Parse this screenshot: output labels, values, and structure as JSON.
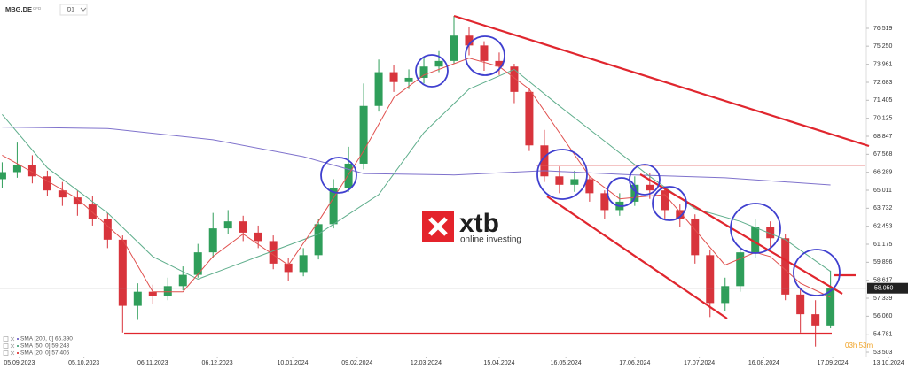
{
  "header": {
    "symbol": "MBG.DE",
    "instrument": "CFD",
    "timeframe": "D1"
  },
  "logo": {
    "brand": "xtb",
    "tagline": "online investing"
  },
  "chart_data": {
    "type": "candlestick",
    "x": [
      "2023-08-28",
      "2023-09-04",
      "2023-09-11",
      "2023-09-18",
      "2023-09-25",
      "2023-10-02",
      "2023-10-09",
      "2023-10-16",
      "2023-10-23",
      "2023-10-30",
      "2023-11-06",
      "2023-11-13",
      "2023-11-20",
      "2023-11-27",
      "2023-12-04",
      "2023-12-11",
      "2023-12-18",
      "2023-12-25",
      "2024-01-01",
      "2024-01-08",
      "2024-01-15",
      "2024-01-22",
      "2024-01-29",
      "2024-02-05",
      "2024-02-12",
      "2024-02-19",
      "2024-02-26",
      "2024-03-04",
      "2024-03-11",
      "2024-03-18",
      "2024-03-25",
      "2024-04-01",
      "2024-04-08",
      "2024-04-15",
      "2024-04-22",
      "2024-04-29",
      "2024-05-06",
      "2024-05-13",
      "2024-05-20",
      "2024-05-27",
      "2024-06-03",
      "2024-06-10",
      "2024-06-17",
      "2024-06-24",
      "2024-07-01",
      "2024-07-08",
      "2024-07-15",
      "2024-07-22",
      "2024-07-29",
      "2024-08-05",
      "2024-08-12",
      "2024-08-19",
      "2024-08-26",
      "2024-09-02",
      "2024-09-09",
      "2024-09-16"
    ],
    "open": [
      65.8,
      66.3,
      66.8,
      66.0,
      65.0,
      64.5,
      64.0,
      63.0,
      61.5,
      56.8,
      57.8,
      57.5,
      58.2,
      59.0,
      60.6,
      62.3,
      62.8,
      62.0,
      61.4,
      59.8,
      59.2,
      60.4,
      62.6,
      65.2,
      66.9,
      71.0,
      73.4,
      72.7,
      73.0,
      73.8,
      74.2,
      76.0,
      75.3,
      74.2,
      73.8,
      72.0,
      68.2,
      66.0,
      65.4,
      65.8,
      64.8,
      63.6,
      64.2,
      65.4,
      65.0,
      63.6,
      63.0,
      60.4,
      57.0,
      58.2,
      60.6,
      62.4,
      61.6,
      57.6,
      56.2,
      55.4
    ],
    "high": [
      67.0,
      68.4,
      67.5,
      66.4,
      65.6,
      65.0,
      64.6,
      63.4,
      61.8,
      58.4,
      58.3,
      58.8,
      59.6,
      61.2,
      63.4,
      63.6,
      63.2,
      62.5,
      61.8,
      60.2,
      60.9,
      63.0,
      65.8,
      68.1,
      72.6,
      74.3,
      73.9,
      73.6,
      74.4,
      74.9,
      77.4,
      76.6,
      75.6,
      74.8,
      74.0,
      72.3,
      69.3,
      66.7,
      66.4,
      66.0,
      65.0,
      64.8,
      66.0,
      66.2,
      65.3,
      64.0,
      63.3,
      60.8,
      58.8,
      61.0,
      63.0,
      62.8,
      61.9,
      58.0,
      57.2,
      59.3
    ],
    "low": [
      65.2,
      65.9,
      65.5,
      64.6,
      63.9,
      63.2,
      62.5,
      60.9,
      54.9,
      55.8,
      56.9,
      57.2,
      57.9,
      58.8,
      60.2,
      61.9,
      61.4,
      60.9,
      59.4,
      58.6,
      58.9,
      60.1,
      62.3,
      64.9,
      66.5,
      70.6,
      72.0,
      72.2,
      72.6,
      73.4,
      74.0,
      74.6,
      73.5,
      73.2,
      71.2,
      67.8,
      65.6,
      64.8,
      64.9,
      64.2,
      63.0,
      63.2,
      63.9,
      64.4,
      63.0,
      62.4,
      59.8,
      56.0,
      56.4,
      57.8,
      60.2,
      60.9,
      57.2,
      54.9,
      53.9,
      55.2
    ],
    "close": [
      66.3,
      66.8,
      66.0,
      65.0,
      64.5,
      64.0,
      63.0,
      61.5,
      56.8,
      57.8,
      57.5,
      58.2,
      59.0,
      60.6,
      62.3,
      62.8,
      62.0,
      61.4,
      59.8,
      59.2,
      60.4,
      62.6,
      65.2,
      66.9,
      71.0,
      73.4,
      72.7,
      73.0,
      73.8,
      74.2,
      76.0,
      75.3,
      74.2,
      73.8,
      72.0,
      68.2,
      66.0,
      65.4,
      65.8,
      64.8,
      63.6,
      64.2,
      65.4,
      65.0,
      63.6,
      63.0,
      60.4,
      57.0,
      58.2,
      60.6,
      62.4,
      61.6,
      57.6,
      56.2,
      55.4,
      58.05
    ],
    "up_color": "#2f9e5a",
    "down_color": "#d8343c",
    "series": [
      {
        "name": "SMA [200, 0] 65.390",
        "color": "#7f72cc",
        "x": [
          "2023-08-28",
          "2023-10-16",
          "2023-12-04",
          "2024-01-15",
          "2024-02-12",
          "2024-03-25",
          "2024-05-06",
          "2024-06-17",
          "2024-07-29",
          "2024-09-16"
        ],
        "values": [
          69.5,
          69.4,
          68.6,
          67.4,
          66.2,
          66.1,
          66.4,
          66.1,
          65.9,
          65.39
        ]
      },
      {
        "name": "SMA [50, 0] 59.243",
        "color": "#5fae8c",
        "x": [
          "2023-08-28",
          "2023-09-18",
          "2023-10-16",
          "2023-11-06",
          "2023-11-27",
          "2023-12-25",
          "2024-01-22",
          "2024-02-19",
          "2024-03-11",
          "2024-04-01",
          "2024-04-22",
          "2024-05-13",
          "2024-06-03",
          "2024-06-24",
          "2024-07-15",
          "2024-08-05",
          "2024-08-26",
          "2024-09-16"
        ],
        "values": [
          70.4,
          66.6,
          63.4,
          60.3,
          58.7,
          60.3,
          61.9,
          64.7,
          69.1,
          72.2,
          73.6,
          71.0,
          68.5,
          66.0,
          63.7,
          62.8,
          61.5,
          59.243
        ]
      },
      {
        "name": "SMA [20, 0] 57.405",
        "color": "#e0504e",
        "x": [
          "2023-08-28",
          "2023-09-11",
          "2023-10-02",
          "2023-10-23",
          "2023-11-06",
          "2023-11-20",
          "2023-12-04",
          "2023-12-18",
          "2024-01-08",
          "2024-01-22",
          "2024-02-12",
          "2024-02-26",
          "2024-03-11",
          "2024-04-01",
          "2024-04-15",
          "2024-04-29",
          "2024-05-13",
          "2024-05-27",
          "2024-06-10",
          "2024-07-01",
          "2024-07-15",
          "2024-07-29",
          "2024-08-12",
          "2024-08-19",
          "2024-09-02",
          "2024-09-16"
        ],
        "values": [
          67.5,
          66.3,
          64.4,
          61.5,
          57.8,
          57.8,
          60.3,
          61.9,
          59.7,
          62.8,
          67.8,
          71.6,
          73.2,
          74.4,
          73.8,
          72.2,
          69.1,
          66.0,
          64.4,
          64.7,
          62.2,
          59.7,
          60.6,
          60.3,
          58.4,
          57.405
        ]
      }
    ],
    "last_price": {
      "value": 58.05,
      "label": "58.050"
    },
    "countdown": "03h 53m",
    "xlim": [
      "2023-08-27",
      "2024-10-22"
    ],
    "xticks": [
      {
        "value": "2023-09-05",
        "label": "05.09.2023"
      },
      {
        "value": "2023-10-05",
        "label": "05.10.2023"
      },
      {
        "value": "2023-11-06",
        "label": "06.11.2023"
      },
      {
        "value": "2023-12-06",
        "label": "06.12.2023"
      },
      {
        "value": "2024-01-10",
        "label": "10.01.2024"
      },
      {
        "value": "2024-02-09",
        "label": "09.02.2024"
      },
      {
        "value": "2024-03-12",
        "label": "12.03.2024"
      },
      {
        "value": "2024-04-15",
        "label": "15.04.2024"
      },
      {
        "value": "2024-05-16",
        "label": "16.05.2024"
      },
      {
        "value": "2024-06-17",
        "label": "17.06.2024"
      },
      {
        "value": "2024-07-17",
        "label": "17.07.2024"
      },
      {
        "value": "2024-08-16",
        "label": "16.08.2024"
      },
      {
        "value": "2024-09-17",
        "label": "17.09.2024"
      },
      {
        "value": "2024-10-13",
        "label": "13.10.2024"
      }
    ],
    "ylim": [
      53.19,
      78.53
    ],
    "yticks": [
      76.519,
      {
        "value": 75.25,
        "label": "75.250"
      },
      73.961,
      72.683,
      71.405,
      70.125,
      68.847,
      67.568,
      66.289,
      65.011,
      63.732,
      62.453,
      61.175,
      59.896,
      58.617,
      57.339,
      {
        "value": 56.06,
        "label": "56.060"
      },
      54.781,
      53.503
    ]
  }
}
